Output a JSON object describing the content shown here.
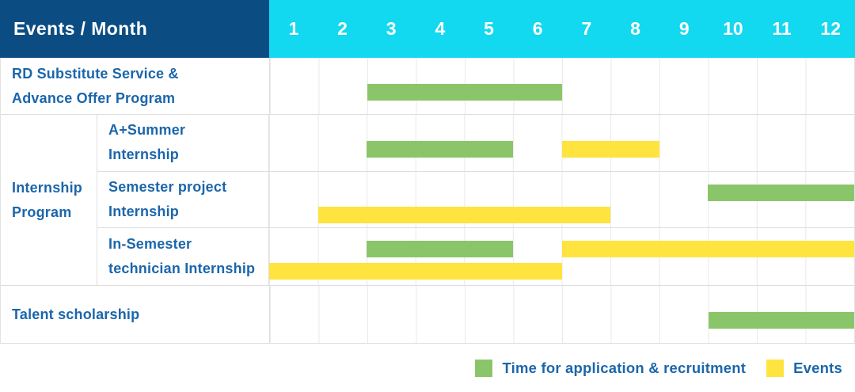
{
  "header": {
    "title": "Events / Month",
    "months": [
      "1",
      "2",
      "3",
      "4",
      "5",
      "6",
      "7",
      "8",
      "9",
      "10",
      "11",
      "12"
    ]
  },
  "colors": {
    "header_bg": "#0B4D82",
    "month_header_bg": "#12D8F0",
    "header_text": "#FFFFFF",
    "label_text": "#1B66AB",
    "application_bar": "#8BC56A",
    "events_bar": "#FFE33F",
    "grid_line": "#E9E9E9",
    "row_border": "#DEDEDE"
  },
  "group": {
    "label_lines": [
      "Internship",
      "Program"
    ]
  },
  "rows": [
    {
      "label_lines": [
        "RD Substitute Service &",
        "Advance Offer Program"
      ],
      "group": null,
      "bars": [
        {
          "kind": "application",
          "start_month": 3,
          "end_month": 6,
          "line": "single"
        }
      ]
    },
    {
      "label_lines": [
        "A+Summer",
        "Internship"
      ],
      "group": "Internship Program",
      "bars": [
        {
          "kind": "application",
          "start_month": 3,
          "end_month": 5,
          "line": "single"
        },
        {
          "kind": "events",
          "start_month": 7,
          "end_month": 8,
          "line": "single"
        }
      ]
    },
    {
      "label_lines": [
        "Semester project",
        "Internship"
      ],
      "group": "Internship Program",
      "bars": [
        {
          "kind": "application",
          "start_month": 10,
          "end_month": 12,
          "line": "top"
        },
        {
          "kind": "events",
          "start_month": 2,
          "end_month": 7,
          "line": "bottom"
        }
      ]
    },
    {
      "label_lines": [
        "In-Semester",
        "technician Internship"
      ],
      "group": "Internship Program",
      "bars": [
        {
          "kind": "application",
          "start_month": 3,
          "end_month": 5,
          "line": "top"
        },
        {
          "kind": "events",
          "start_month": 7,
          "end_month": 12,
          "line": "top"
        },
        {
          "kind": "events",
          "start_month": 1,
          "end_month": 6,
          "line": "bottom"
        }
      ]
    },
    {
      "label_lines": [
        "Talent scholarship"
      ],
      "group": null,
      "bars": [
        {
          "kind": "application",
          "start_month": 10,
          "end_month": 12,
          "line": "single"
        }
      ]
    }
  ],
  "legend": [
    {
      "kind": "application",
      "label": "Time for application & recruitment"
    },
    {
      "kind": "events",
      "label": "Events"
    }
  ],
  "chart_data": {
    "type": "bar",
    "subtype": "gantt",
    "title": "Events / Month",
    "x_axis": {
      "label": "Month",
      "ticks": [
        1,
        2,
        3,
        4,
        5,
        6,
        7,
        8,
        9,
        10,
        11,
        12
      ],
      "range": [
        1,
        12
      ]
    },
    "grid": true,
    "legend_position": "bottom-right",
    "series": [
      {
        "name": "RD Substitute Service & Advance Offer Program",
        "group": null,
        "intervals": [
          {
            "kind": "Time for application & recruitment",
            "start": 3,
            "end": 6
          }
        ]
      },
      {
        "name": "A+Summer Internship",
        "group": "Internship Program",
        "intervals": [
          {
            "kind": "Time for application & recruitment",
            "start": 3,
            "end": 5
          },
          {
            "kind": "Events",
            "start": 7,
            "end": 8
          }
        ]
      },
      {
        "name": "Semester project Internship",
        "group": "Internship Program",
        "intervals": [
          {
            "kind": "Time for application & recruitment",
            "start": 10,
            "end": 12
          },
          {
            "kind": "Events",
            "start": 2,
            "end": 7
          }
        ]
      },
      {
        "name": "In-Semester technician Internship",
        "group": "Internship Program",
        "intervals": [
          {
            "kind": "Time for application & recruitment",
            "start": 3,
            "end": 5
          },
          {
            "kind": "Events",
            "start": 7,
            "end": 12
          },
          {
            "kind": "Events",
            "start": 1,
            "end": 6
          }
        ]
      },
      {
        "name": "Talent scholarship",
        "group": null,
        "intervals": [
          {
            "kind": "Time for application & recruitment",
            "start": 10,
            "end": 12
          }
        ]
      }
    ]
  }
}
